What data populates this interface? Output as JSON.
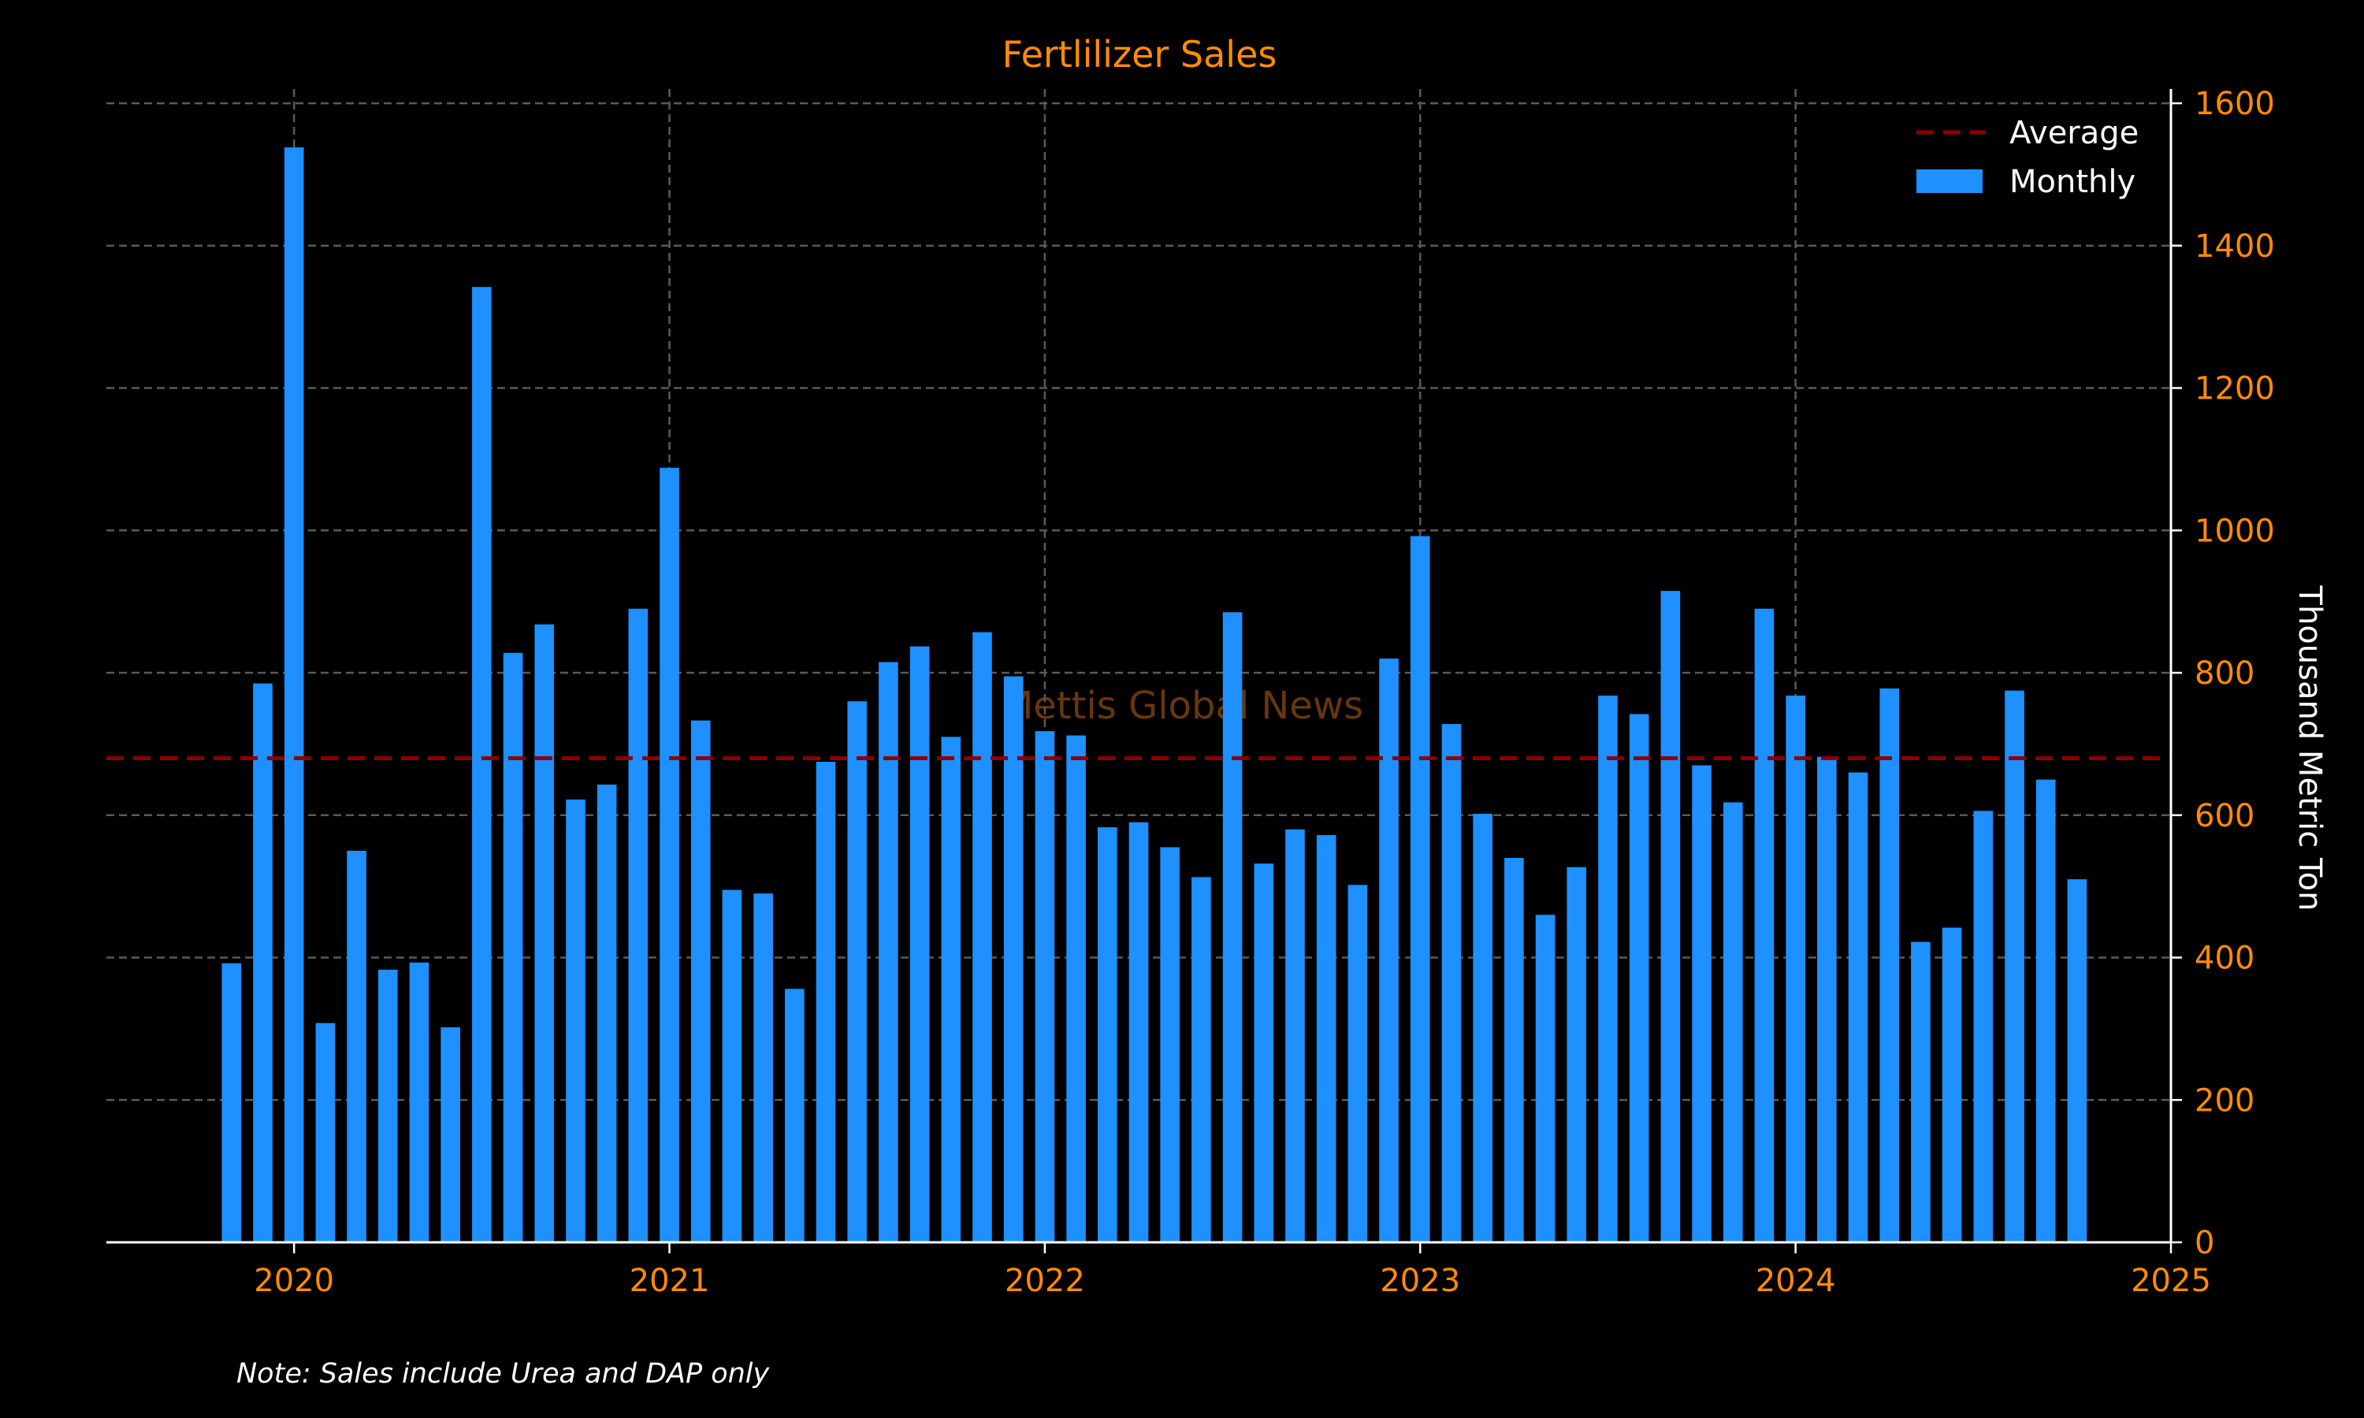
{
  "chart_data": {
    "type": "bar",
    "title": "Fertlilizer Sales",
    "ylabel": "Thousand Metric Ton",
    "xlabel": "",
    "note": "Note: Sales include Urea and DAP only",
    "watermark": "Mettis Global News",
    "ylim": [
      0,
      1620
    ],
    "xlim": [
      "2019-07",
      "2025-01"
    ],
    "y_ticks": [
      0,
      200,
      400,
      600,
      800,
      1000,
      1200,
      1400,
      1600
    ],
    "x_ticks": [
      "2020",
      "2021",
      "2022",
      "2023",
      "2024",
      "2025"
    ],
    "grid": true,
    "legend_position": "top-right",
    "colors": {
      "bar": "#1e90ff",
      "average": "#8b0000",
      "text_accent": "#ff8c00",
      "background": "#000000"
    },
    "average": {
      "name": "Average",
      "value": 680
    },
    "series": [
      {
        "name": "Monthly",
        "x": [
          "2019-11",
          "2019-12",
          "2020-01",
          "2020-02",
          "2020-03",
          "2020-04",
          "2020-05",
          "2020-06",
          "2020-07",
          "2020-08",
          "2020-09",
          "2020-10",
          "2020-11",
          "2020-12",
          "2021-01",
          "2021-02",
          "2021-03",
          "2021-04",
          "2021-05",
          "2021-06",
          "2021-07",
          "2021-08",
          "2021-09",
          "2021-10",
          "2021-11",
          "2021-12",
          "2022-01",
          "2022-02",
          "2022-03",
          "2022-04",
          "2022-05",
          "2022-06",
          "2022-07",
          "2022-08",
          "2022-09",
          "2022-10",
          "2022-11",
          "2022-12",
          "2023-01",
          "2023-02",
          "2023-03",
          "2023-04",
          "2023-05",
          "2023-06",
          "2023-07",
          "2023-08",
          "2023-09",
          "2023-10",
          "2023-11",
          "2023-12",
          "2024-01",
          "2024-02",
          "2024-03",
          "2024-04",
          "2024-05",
          "2024-06",
          "2024-07",
          "2024-08",
          "2024-09",
          "2024-10"
        ],
        "values": [
          392,
          785,
          1538,
          308,
          550,
          383,
          393,
          302,
          1342,
          828,
          868,
          622,
          643,
          890,
          1088,
          733,
          495,
          490,
          356,
          675,
          760,
          815,
          837,
          710,
          857,
          795,
          718,
          712,
          583,
          590,
          555,
          513,
          885,
          532,
          580,
          572,
          502,
          820,
          992,
          728,
          602,
          540,
          460,
          527,
          768,
          742,
          915,
          670,
          618,
          890,
          768,
          682,
          660,
          778,
          422,
          442,
          606,
          775,
          650,
          510
        ]
      }
    ]
  }
}
